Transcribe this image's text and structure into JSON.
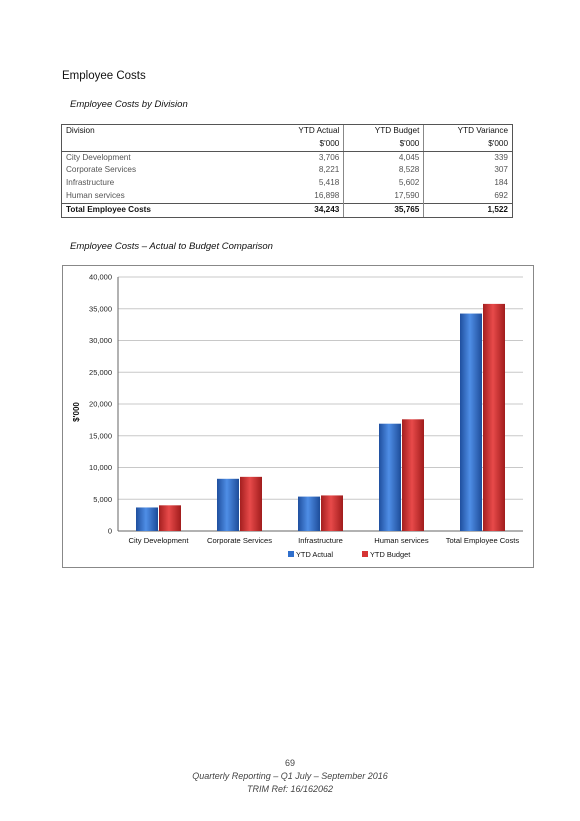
{
  "section_title": "Employee Costs",
  "table_title": "Employee Costs by Division",
  "table": {
    "headers": [
      "Division",
      "YTD Actual",
      "YTD Budget",
      "YTD Variance"
    ],
    "subheaders": [
      "",
      "$'000",
      "$'000",
      "$'000"
    ],
    "rows": [
      [
        "City Development",
        "3,706",
        "4,045",
        "339"
      ],
      [
        "Corporate Services",
        "8,221",
        "8,528",
        "307"
      ],
      [
        "Infrastructure",
        "5,418",
        "5,602",
        "184"
      ],
      [
        "Human services",
        "16,898",
        "17,590",
        "692"
      ]
    ],
    "total": [
      "Total Employee Costs",
      "34,243",
      "35,765",
      "1,522"
    ]
  },
  "chart_title": "Employee Costs – Actual to Budget Comparison",
  "chart_data": {
    "type": "bar",
    "categories": [
      "City Development",
      "Corporate Services",
      "Infrastructure",
      "Human services",
      "Total Employee Costs"
    ],
    "series": [
      {
        "name": "YTD Actual",
        "values": [
          3706,
          8221,
          5418,
          16898,
          34243
        ],
        "color": "#2f6fcc"
      },
      {
        "name": "YTD Budget",
        "values": [
          4045,
          8528,
          5602,
          17590,
          35765
        ],
        "color": "#d63434"
      }
    ],
    "ylabel": "$'000",
    "ylim": [
      0,
      40000
    ],
    "yticks": [
      "0",
      "5,000",
      "10,000",
      "15,000",
      "20,000",
      "25,000",
      "30,000",
      "35,000",
      "40,000"
    ],
    "grid": true,
    "legend": "bottom"
  },
  "footer": {
    "page_number": "69",
    "line1": "Quarterly Reporting – Q1 July – September 2016",
    "line2": "TRIM Ref: 16/162062"
  }
}
